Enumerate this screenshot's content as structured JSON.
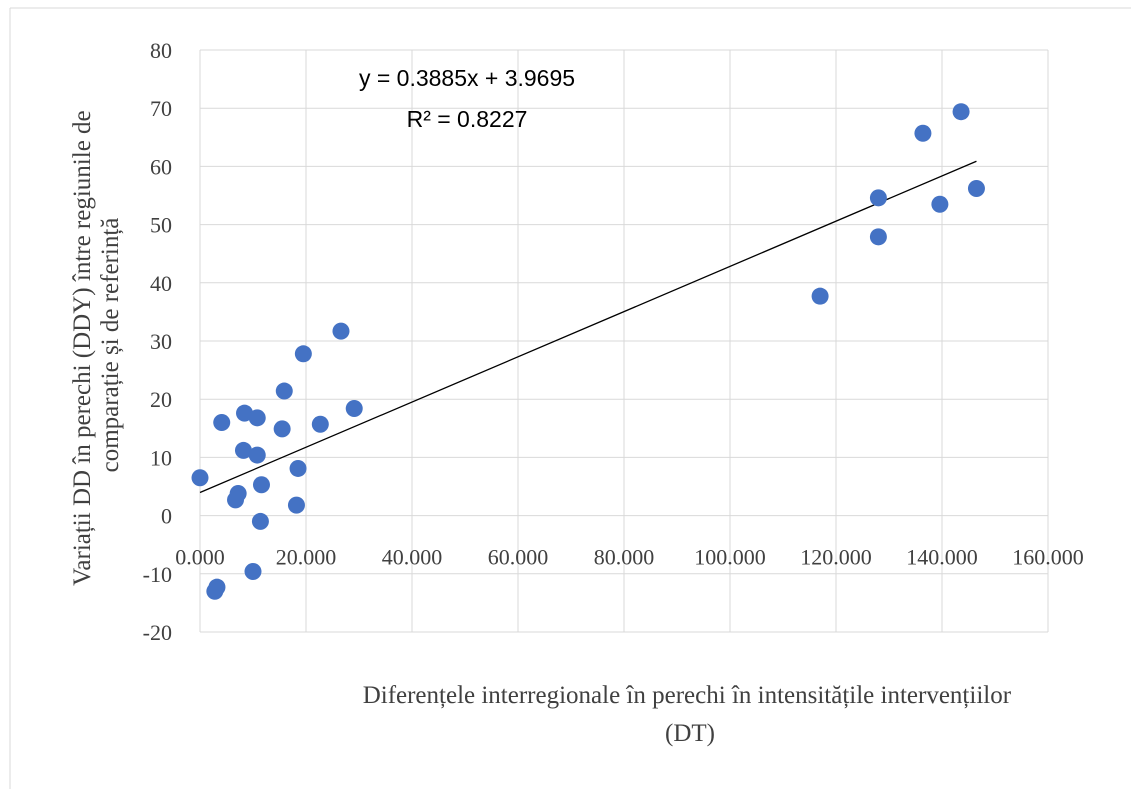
{
  "chart_data": {
    "type": "scatter",
    "xlabel": "Diferențele interregionale în perechi în intensitățile intervențiilor (DT)",
    "ylabel": "Variații  DD în perechi (DDY)  între regiunile  de comparație și de referință",
    "xlim": [
      0,
      160
    ],
    "ylim": [
      -20,
      80
    ],
    "x_ticks": [
      "0.000",
      "20.000",
      "40.000",
      "60.000",
      "80.000",
      "100.000",
      "120.000",
      "140.000",
      "160.000"
    ],
    "y_ticks": [
      "-20",
      "-10",
      "0",
      "10",
      "20",
      "30",
      "40",
      "50",
      "60",
      "70",
      "80"
    ],
    "grid": true,
    "marker_color": "#4472C4",
    "trendline": {
      "type": "linear",
      "slope": 0.3885,
      "intercept": 3.9695,
      "x_range": [
        0,
        146.5
      ],
      "color": "#000000",
      "equation": "y = 0.3885x + 3.9695",
      "r_squared": "R² = 0.8227"
    },
    "points": [
      {
        "x": 0.0,
        "y": 6.5
      },
      {
        "x": 2.8,
        "y": -13.0
      },
      {
        "x": 3.2,
        "y": -12.3
      },
      {
        "x": 4.1,
        "y": 16.0
      },
      {
        "x": 6.7,
        "y": 2.7
      },
      {
        "x": 7.2,
        "y": 3.8
      },
      {
        "x": 8.2,
        "y": 11.2
      },
      {
        "x": 8.4,
        "y": 17.6
      },
      {
        "x": 10.0,
        "y": -9.6
      },
      {
        "x": 10.8,
        "y": 16.8
      },
      {
        "x": 10.8,
        "y": 10.4
      },
      {
        "x": 11.4,
        "y": -1.0
      },
      {
        "x": 11.6,
        "y": 5.3
      },
      {
        "x": 15.5,
        "y": 14.9
      },
      {
        "x": 15.9,
        "y": 21.4
      },
      {
        "x": 18.2,
        "y": 1.8
      },
      {
        "x": 18.5,
        "y": 8.1
      },
      {
        "x": 19.5,
        "y": 27.8
      },
      {
        "x": 22.7,
        "y": 15.7
      },
      {
        "x": 26.6,
        "y": 31.7
      },
      {
        "x": 29.1,
        "y": 18.4
      },
      {
        "x": 117.0,
        "y": 37.7
      },
      {
        "x": 128.0,
        "y": 47.9
      },
      {
        "x": 128.0,
        "y": 54.6
      },
      {
        "x": 136.4,
        "y": 65.7
      },
      {
        "x": 139.6,
        "y": 53.5
      },
      {
        "x": 143.6,
        "y": 69.4
      },
      {
        "x": 146.5,
        "y": 56.2
      }
    ]
  }
}
